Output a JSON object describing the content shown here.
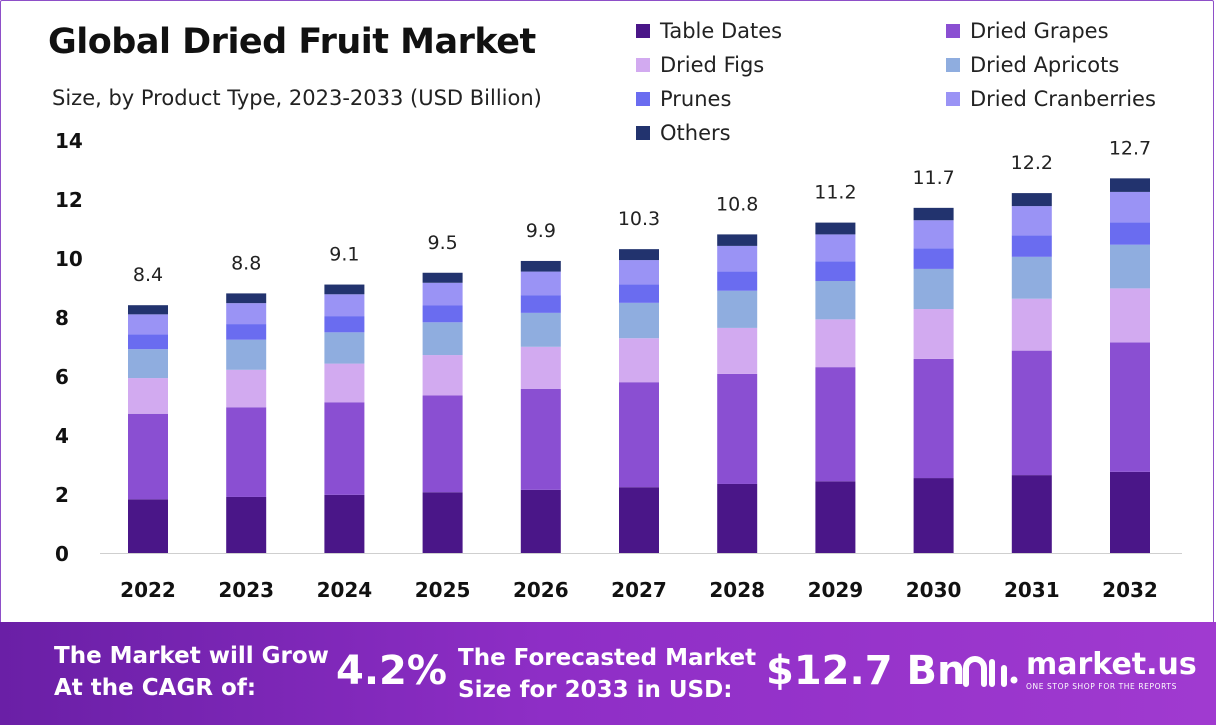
{
  "header": {
    "title": "Global Dried Fruit Market",
    "subtitle": "Size, by Product Type, 2023-2033 (USD Billion)"
  },
  "chart_data": {
    "type": "bar",
    "stacked": true,
    "categories": [
      "2022",
      "2023",
      "2024",
      "2025",
      "2026",
      "2027",
      "2028",
      "2029",
      "2030",
      "2031",
      "2032"
    ],
    "totals": [
      "8.4",
      "8.8",
      "9.1",
      "9.5",
      "9.9",
      "10.3",
      "10.8",
      "11.2",
      "11.7",
      "12.2",
      "12.7"
    ],
    "ylim": [
      0,
      14
    ],
    "yticks": [
      0,
      2,
      4,
      6,
      8,
      10,
      12,
      14
    ],
    "legend_position": "top-right",
    "grid": false,
    "series": [
      {
        "name": "Table Dates",
        "color": "#4a1688",
        "values": [
          1.82,
          1.9,
          1.97,
          2.06,
          2.14,
          2.23,
          2.34,
          2.43,
          2.54,
          2.64,
          2.75
        ]
      },
      {
        "name": "Dried Grapes",
        "color": "#8a4fd2",
        "values": [
          2.9,
          3.04,
          3.14,
          3.28,
          3.42,
          3.56,
          3.73,
          3.87,
          4.04,
          4.22,
          4.39
        ]
      },
      {
        "name": "Dried Figs",
        "color": "#d2aaf0",
        "values": [
          1.21,
          1.27,
          1.31,
          1.37,
          1.43,
          1.49,
          1.56,
          1.62,
          1.69,
          1.76,
          1.83
        ]
      },
      {
        "name": "Dried Apricots",
        "color": "#8faddf",
        "values": [
          0.98,
          1.02,
          1.06,
          1.11,
          1.15,
          1.2,
          1.26,
          1.3,
          1.36,
          1.42,
          1.48
        ]
      },
      {
        "name": "Prunes",
        "color": "#6a6cf0",
        "values": [
          0.5,
          0.53,
          0.55,
          0.57,
          0.6,
          0.62,
          0.65,
          0.67,
          0.7,
          0.73,
          0.76
        ]
      },
      {
        "name": "Dried Cranberries",
        "color": "#9a93f5",
        "values": [
          0.68,
          0.71,
          0.74,
          0.77,
          0.8,
          0.83,
          0.87,
          0.91,
          0.95,
          0.99,
          1.03
        ]
      },
      {
        "name": "Others",
        "color": "#22336e",
        "values": [
          0.31,
          0.33,
          0.33,
          0.34,
          0.36,
          0.37,
          0.39,
          0.4,
          0.42,
          0.44,
          0.46
        ]
      }
    ]
  },
  "footer": {
    "cagr_label_line1": "The Market will Grow",
    "cagr_label_line2": "At the CAGR of:",
    "cagr_value": "4.2%",
    "forecast_label_line1": "The Forecasted Market",
    "forecast_label_line2": "Size for 2033 in USD:",
    "forecast_value": "$12.7 Bn",
    "brand_name": "market.us",
    "brand_tagline": "ONE STOP SHOP FOR THE REPORTS"
  }
}
